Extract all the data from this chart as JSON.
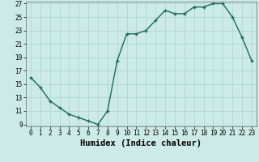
{
  "x": [
    0,
    1,
    2,
    3,
    4,
    5,
    6,
    7,
    8,
    9,
    10,
    11,
    12,
    13,
    14,
    15,
    16,
    17,
    18,
    19,
    20,
    21,
    22,
    23
  ],
  "y": [
    16,
    14.5,
    12.5,
    11.5,
    10.5,
    10,
    9.5,
    9,
    11,
    18.5,
    22.5,
    22.5,
    23,
    24.5,
    26,
    25.5,
    25.5,
    26.5,
    26.5,
    27,
    27,
    25,
    22,
    18.5
  ],
  "xlabel": "Humidex (Indice chaleur)",
  "line_color": "#1a6b5a",
  "bg_color": "#cceae6",
  "grid_color": "#aad4cf",
  "ylim": [
    9,
    27
  ],
  "xlim": [
    -0.5,
    23.5
  ],
  "yticks": [
    9,
    11,
    13,
    15,
    17,
    19,
    21,
    23,
    25,
    27
  ],
  "xticks": [
    0,
    1,
    2,
    3,
    4,
    5,
    6,
    7,
    8,
    9,
    10,
    11,
    12,
    13,
    14,
    15,
    16,
    17,
    18,
    19,
    20,
    21,
    22,
    23
  ],
  "tick_fontsize": 5.5,
  "xlabel_fontsize": 7.5
}
